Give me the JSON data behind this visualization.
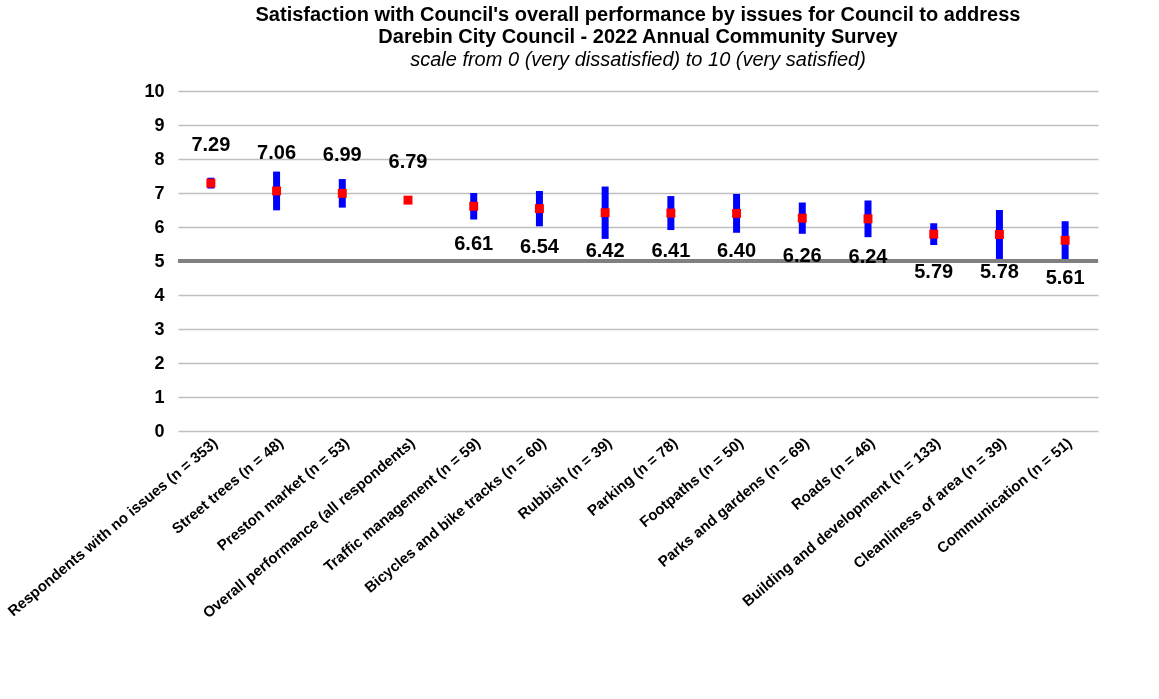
{
  "chart_data": {
    "type": "scatter",
    "title": "Satisfaction with Council's overall performance by issues for Council to address\nDarebin City Council - 2022 Annual Community Survey",
    "subtitle": "scale from 0 (very dissatisfied) to 10 (very satisfied)",
    "categories": [
      "Respondents with no issues (n = 353)",
      "Street trees (n = 48)",
      "Preston market (n = 53)",
      "Overall performance (all respondents)",
      "Traffic management (n = 59)",
      "Bicycles and bike tracks (n = 60)",
      "Rubbish (n = 39)",
      "Parking (n = 78)",
      "Footpaths (n = 50)",
      "Parks and gardens (n = 69)",
      "Roads (n = 46)",
      "Building and development (n = 133)",
      "Cleanliness of area (n = 39)",
      "Communication (n = 51)"
    ],
    "series": [
      {
        "color": "#ff0000",
        "values": [
          7.29,
          7.06,
          6.99,
          6.79,
          6.61,
          6.54,
          6.42,
          6.41,
          6.4,
          6.26,
          6.24,
          5.79,
          5.78,
          5.61
        ],
        "errors": [
          0.16,
          0.57,
          0.42,
          null,
          0.39,
          0.52,
          0.77,
          0.5,
          0.57,
          0.46,
          0.54,
          0.32,
          0.72,
          0.56
        ]
      }
    ],
    "value_labels": [
      "7.29",
      "7.06",
      "6.99",
      "6.79",
      "6.61",
      "6.54",
      "6.42",
      "6.41",
      "6.40",
      "6.26",
      "6.24",
      "5.79",
      "5.78",
      "5.61"
    ],
    "ylim": [
      0,
      10
    ],
    "yticks": [
      0,
      1,
      2,
      3,
      4,
      5,
      6,
      7,
      8,
      9,
      10
    ],
    "grid": "y",
    "marker": "square",
    "ref_lines": [
      {
        "axis": "y",
        "value": 5,
        "color": "#808080"
      }
    ]
  }
}
